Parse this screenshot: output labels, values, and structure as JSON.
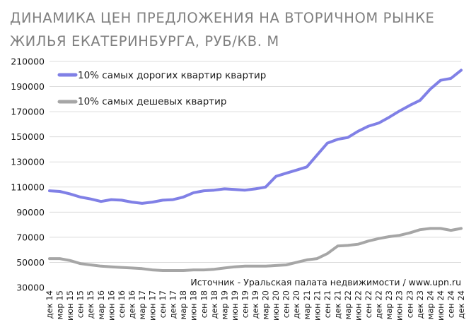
{
  "chart_data": {
    "type": "line",
    "title_lines": [
      "ДИНАМИКА  ЦЕН ПРЕДЛОЖЕНИЯ НА ВТОРИЧНОМ РЫНКЕ",
      "ЖИЛЬЯ ЕКАТЕРИНБУРГА, РУБ/КВ. М"
    ],
    "xlabel": "",
    "ylabel": "",
    "ylim": [
      30000,
      210000
    ],
    "yticks": [
      30000,
      50000,
      70000,
      90000,
      110000,
      130000,
      150000,
      170000,
      190000,
      210000
    ],
    "grid": true,
    "legend_position": "top-left",
    "x_labels": [
      "дек 14",
      "мар 15",
      "июн 15",
      "сен 15",
      "дек 15",
      "мар 16",
      "июн 16",
      "сен 16",
      "дек 16",
      "мар 17",
      "июн 17",
      "сен 17",
      "дек 17",
      "мар 18",
      "июн 18",
      "сен 18",
      "дек 18",
      "мар 19",
      "июн 19",
      "сен 19",
      "дек 19",
      "мар 20",
      "июн 20",
      "сен 20",
      "дек 20",
      "мар 21",
      "июн 21",
      "сен 21",
      "дек 21",
      "мар 22",
      "июн 22",
      "сен 22",
      "дек 22",
      "мар 23",
      "июн 23",
      "сен 23",
      "дек 23",
      "мар 24",
      "июн 24",
      "сен 24",
      "дек 24"
    ],
    "series": [
      {
        "name": "10% самых дорогих квартир квартир",
        "color": "#8080e6",
        "values": [
          107000,
          106500,
          104500,
          102000,
          100500,
          98500,
          100000,
          99500,
          98000,
          97000,
          98000,
          99500,
          100000,
          102000,
          105500,
          107000,
          107500,
          108500,
          108000,
          107500,
          108500,
          110000,
          118500,
          121000,
          123500,
          126000,
          135500,
          145000,
          148000,
          149500,
          154500,
          158500,
          161000,
          165500,
          170500,
          175000,
          179000,
          188000,
          195000,
          196500,
          203000
        ]
      },
      {
        "name": "10% самых дешевых квартир",
        "color": "#a6a6a6",
        "values": [
          53000,
          53000,
          51500,
          49000,
          48000,
          47000,
          46500,
          46000,
          45500,
          45000,
          44000,
          43500,
          43500,
          43500,
          44000,
          44000,
          44500,
          45500,
          46500,
          47000,
          47000,
          47000,
          47500,
          48000,
          50000,
          52000,
          53000,
          57000,
          63000,
          63500,
          64500,
          67000,
          69000,
          70500,
          71500,
          73500,
          76000,
          77000,
          77000,
          75500,
          77000
        ]
      }
    ]
  },
  "source": "Источник - Уральская палата недвижимости / www.upn.ru"
}
